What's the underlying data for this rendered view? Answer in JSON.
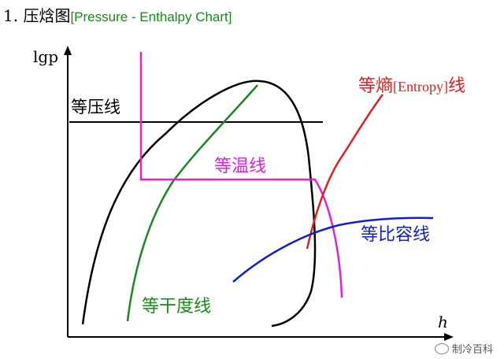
{
  "title": {
    "number": "1.",
    "chinese": "压焓图",
    "english": "[Pressure - Enthalpy Chart]",
    "english_color": "#1a8a1a"
  },
  "axes": {
    "y_label": "lgp",
    "x_label": "h"
  },
  "curves": {
    "isobar": {
      "label": "等压线",
      "color": "#000000"
    },
    "isotherm": {
      "label": "等温线",
      "color": "#e020e0"
    },
    "isentrope": {
      "label": "等熵",
      "label_bracket": "[Entropy]",
      "label_suffix": "线",
      "color": "#e02020"
    },
    "isochore": {
      "label": "等比容线",
      "color": "#1020d0"
    },
    "quality": {
      "label": "等干度线",
      "color": "#1a8a1a"
    }
  },
  "watermark": {
    "text": "制冷百科"
  }
}
